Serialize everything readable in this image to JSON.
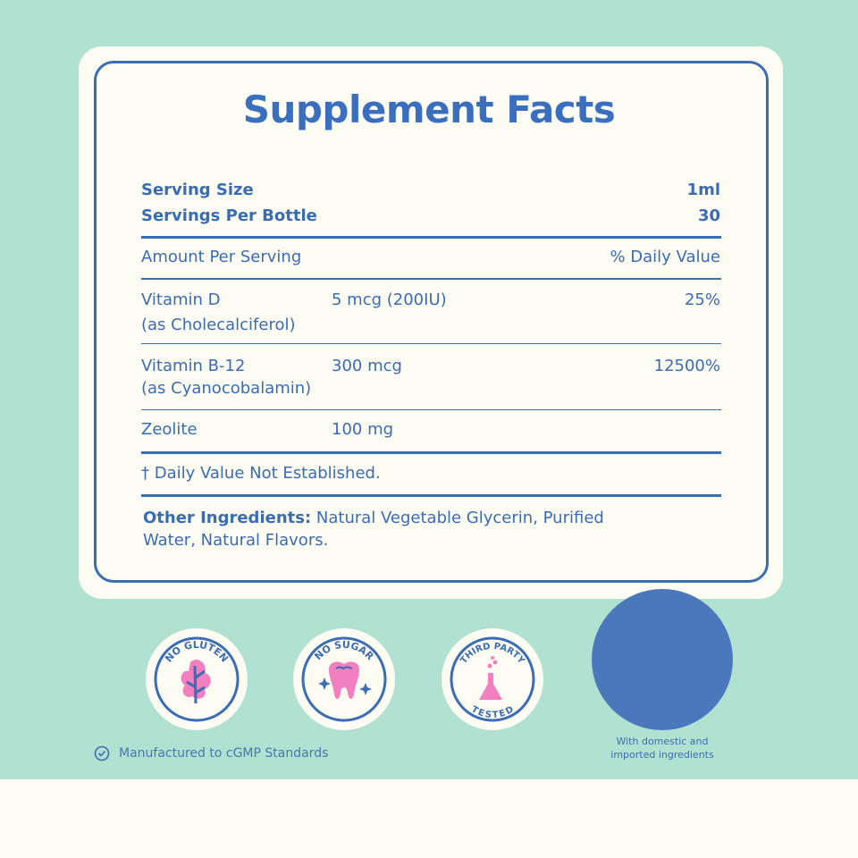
{
  "title": "Supplement Facts",
  "serving": {
    "size_label": "Serving Size",
    "size_value": "1ml",
    "per_bottle_label": "Servings Per Bottle",
    "per_bottle_value": "30"
  },
  "header": {
    "amount": "Amount Per Serving",
    "dv": "% Daily Value"
  },
  "rows": [
    {
      "name": "Vitamin D",
      "sub": "(as Cholecalciferol)",
      "amount": "5 mcg (200IU)",
      "dv": "25%"
    },
    {
      "name": "Vitamin B-12",
      "sub": "(as Cyanocobalamin)",
      "amount": "300 mcg",
      "dv": "12500%"
    },
    {
      "name": "Zeolite",
      "amount": "100 mg"
    }
  ],
  "footnote": "† Daily Value Not Established.",
  "other": {
    "label": "Other Ingredients:",
    "line1": "Natural Vegetable Glycerin, Purified",
    "line2": "Water, Natural Flavors."
  },
  "badges": [
    {
      "text": "NO GLUTEN",
      "icon": "leaf-icon"
    },
    {
      "text": "NO SUGAR",
      "icon": "tooth-icon"
    },
    {
      "top": "THIRD PARTY",
      "bottom": "TESTED",
      "icon": "flask-icon"
    }
  ],
  "cgmp": "Manufactured to cGMP Standards",
  "origin": {
    "line1": "With domestic and",
    "line2": "imported ingredients"
  },
  "colors": {
    "mint": "#b1e1d1",
    "cream": "#fdfcf3",
    "blue": "#3b6db6",
    "pink": "#f27fbf",
    "circle": "#4b78bd"
  }
}
